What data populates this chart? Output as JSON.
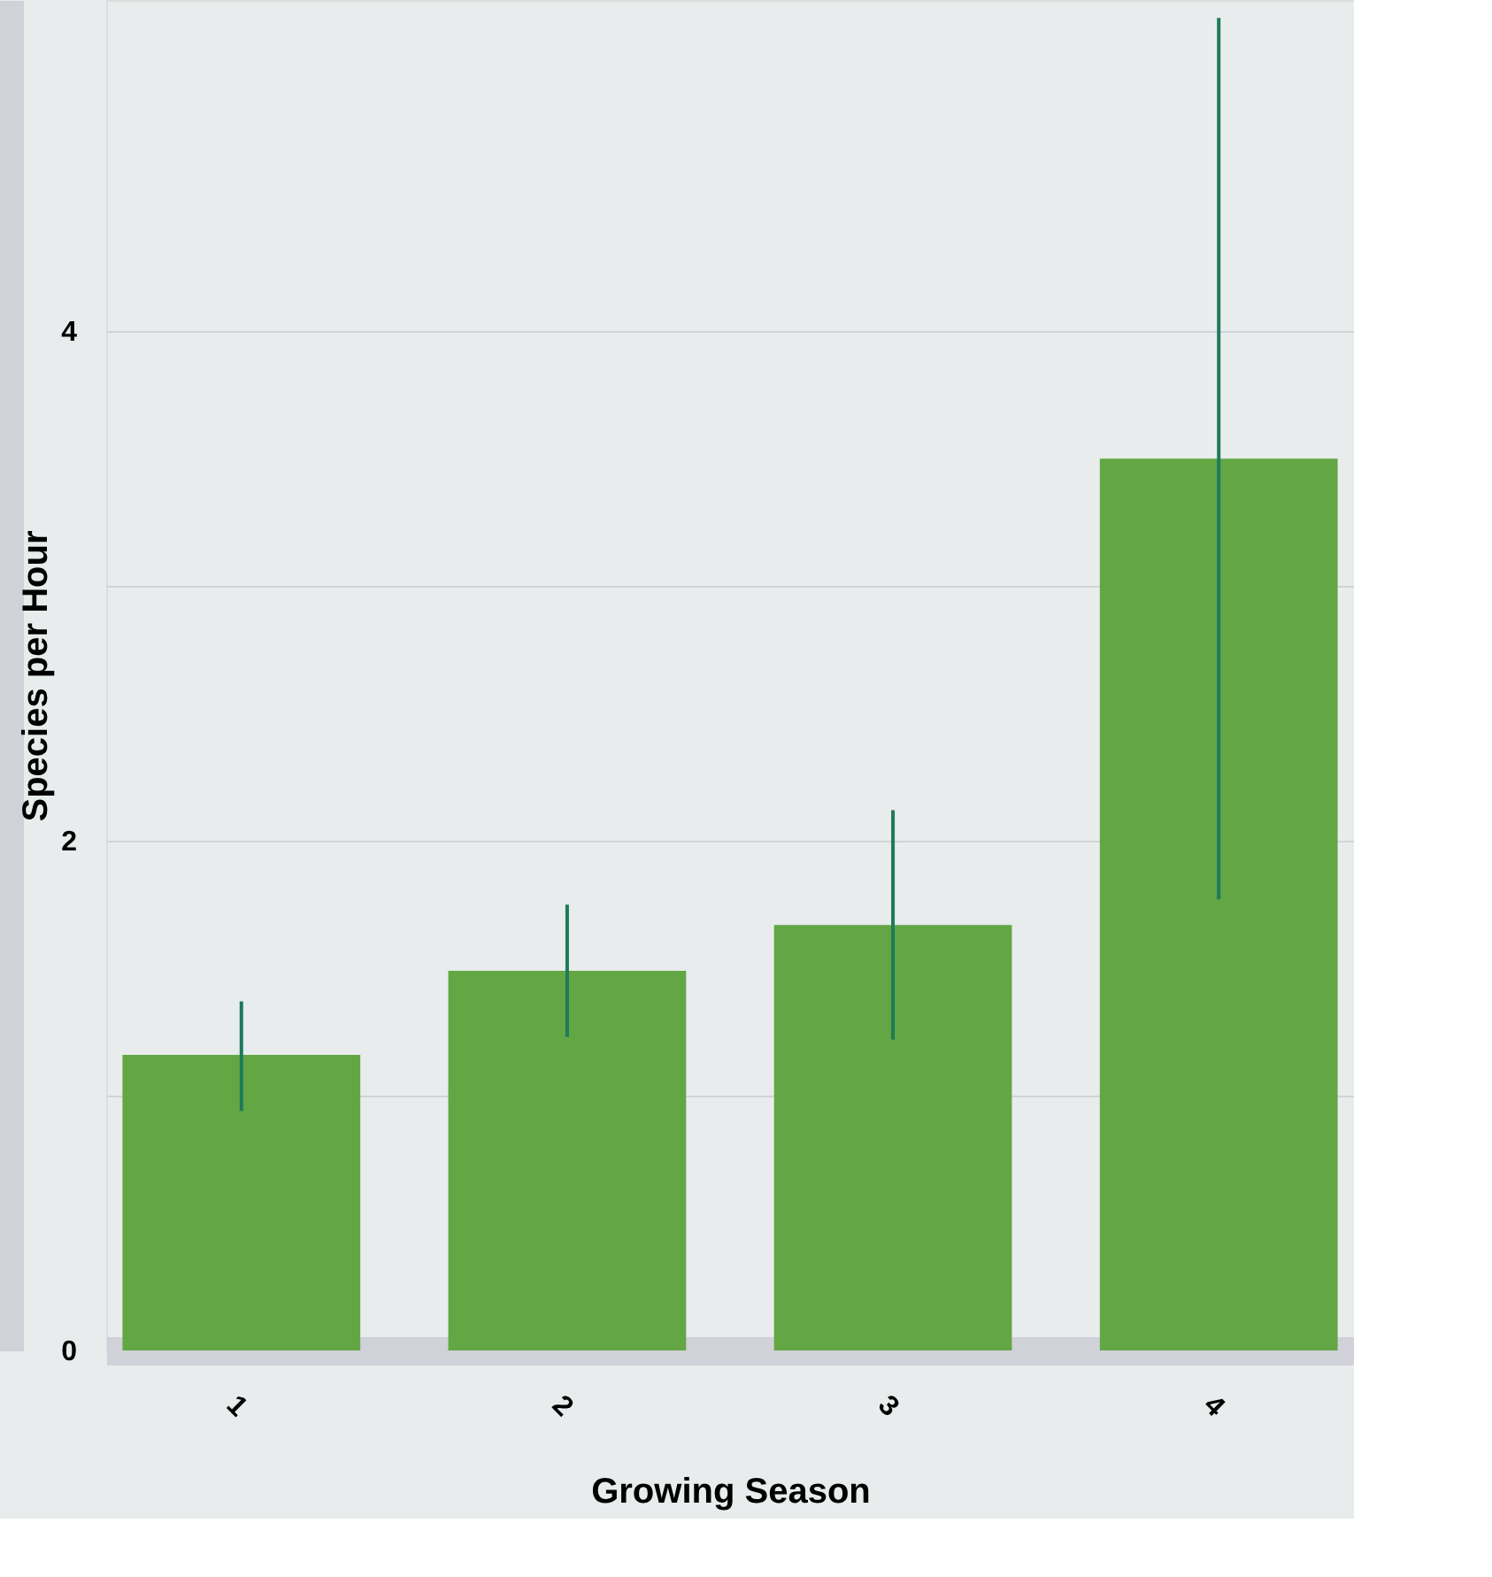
{
  "chart_data": {
    "type": "bar",
    "xlabel": "Growing Season",
    "ylabel": "Species per Hour",
    "categories": [
      "1",
      "2",
      "3",
      "4"
    ],
    "values": [
      1.16,
      1.49,
      1.67,
      3.5
    ],
    "errors": [
      [
        0.94,
        1.37
      ],
      [
        1.23,
        1.75
      ],
      [
        1.22,
        2.12
      ],
      [
        1.77,
        5.23
      ]
    ],
    "color": "#63a744",
    "ylim": [
      0,
      5.3
    ],
    "yticks": [
      0,
      {
        "value": 1,
        "label": null
      },
      2,
      {
        "value": 3,
        "label": null
      },
      4
    ],
    "grid": "y"
  }
}
